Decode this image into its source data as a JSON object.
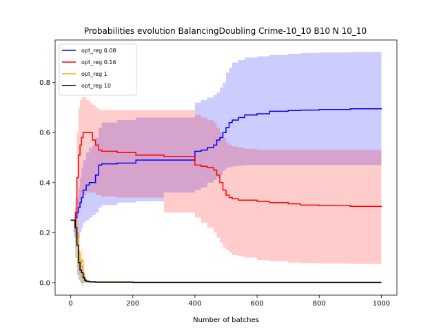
{
  "chart_data": {
    "type": "line",
    "title": "Probabilities evolution BalancingDoubling Crime-10_10 B10 N 10_10",
    "xlabel": "Number of batches",
    "ylabel": "",
    "xlim": [
      -50,
      1050
    ],
    "ylim": [
      -0.05,
      0.97
    ],
    "xticks": [
      0,
      200,
      400,
      600,
      800,
      1000
    ],
    "yticks": [
      0.0,
      0.2,
      0.4,
      0.6,
      0.8
    ],
    "ytick_labels": [
      "0.0",
      "0.2",
      "0.4",
      "0.6",
      "0.8"
    ],
    "grid": false,
    "legend_position": "top-left",
    "series": [
      {
        "name": "opt_reg 0.08",
        "color": "#0000ff",
        "band_color": "#0000ff",
        "x": [
          0,
          10,
          15,
          20,
          25,
          30,
          35,
          40,
          50,
          60,
          70,
          80,
          90,
          100,
          150,
          210,
          300,
          400,
          420,
          440,
          460,
          470,
          480,
          490,
          500,
          510,
          520,
          540,
          560,
          600,
          640,
          700,
          740,
          800,
          900,
          1000
        ],
        "y": [
          0.25,
          0.25,
          0.26,
          0.28,
          0.3,
          0.32,
          0.34,
          0.37,
          0.39,
          0.4,
          0.4,
          0.43,
          0.47,
          0.475,
          0.478,
          0.49,
          0.49,
          0.525,
          0.53,
          0.54,
          0.55,
          0.57,
          0.58,
          0.6,
          0.62,
          0.64,
          0.65,
          0.66,
          0.67,
          0.675,
          0.685,
          0.688,
          0.69,
          0.692,
          0.695,
          0.697
        ],
        "lower": [
          0.25,
          0.25,
          0.2,
          0.18,
          0.17,
          0.18,
          0.2,
          0.22,
          0.24,
          0.25,
          0.26,
          0.27,
          0.28,
          0.3,
          0.31,
          0.32,
          0.325,
          0.36,
          0.37,
          0.38,
          0.4,
          0.41,
          0.42,
          0.43,
          0.45,
          0.46,
          0.462,
          0.465,
          0.468,
          0.47,
          0.47,
          0.47,
          0.47,
          0.47,
          0.47,
          0.47
        ],
        "upper": [
          0.25,
          0.25,
          0.3,
          0.34,
          0.38,
          0.42,
          0.46,
          0.49,
          0.52,
          0.54,
          0.55,
          0.58,
          0.62,
          0.64,
          0.65,
          0.66,
          0.66,
          0.72,
          0.73,
          0.74,
          0.75,
          0.76,
          0.78,
          0.8,
          0.84,
          0.86,
          0.88,
          0.89,
          0.9,
          0.905,
          0.91,
          0.915,
          0.918,
          0.92,
          0.922,
          0.925
        ]
      },
      {
        "name": "opt_reg 0.16",
        "color": "#ff0000",
        "band_color": "#ff0000",
        "x": [
          0,
          10,
          15,
          20,
          25,
          30,
          35,
          40,
          50,
          60,
          70,
          80,
          90,
          100,
          150,
          210,
          300,
          400,
          420,
          440,
          460,
          470,
          480,
          490,
          500,
          510,
          520,
          540,
          560,
          600,
          640,
          700,
          740,
          800,
          900,
          1000
        ],
        "y": [
          0.25,
          0.25,
          0.28,
          0.42,
          0.51,
          0.55,
          0.58,
          0.6,
          0.6,
          0.6,
          0.57,
          0.55,
          0.53,
          0.525,
          0.52,
          0.51,
          0.505,
          0.47,
          0.465,
          0.46,
          0.45,
          0.43,
          0.4,
          0.37,
          0.35,
          0.34,
          0.335,
          0.33,
          0.33,
          0.325,
          0.32,
          0.315,
          0.31,
          0.308,
          0.305,
          0.302
        ],
        "lower": [
          0.25,
          0.25,
          0.22,
          0.23,
          0.26,
          0.3,
          0.32,
          0.34,
          0.35,
          0.36,
          0.36,
          0.36,
          0.35,
          0.35,
          0.345,
          0.34,
          0.34,
          0.28,
          0.26,
          0.24,
          0.22,
          0.2,
          0.18,
          0.16,
          0.14,
          0.13,
          0.12,
          0.11,
          0.105,
          0.1,
          0.09,
          0.085,
          0.08,
          0.078,
          0.076,
          0.075
        ],
        "upper": [
          0.25,
          0.25,
          0.34,
          0.6,
          0.7,
          0.73,
          0.74,
          0.74,
          0.73,
          0.72,
          0.71,
          0.7,
          0.69,
          0.69,
          0.69,
          0.69,
          0.69,
          0.67,
          0.66,
          0.65,
          0.64,
          0.62,
          0.6,
          0.58,
          0.56,
          0.55,
          0.545,
          0.54,
          0.535,
          0.53,
          0.53,
          0.53,
          0.53,
          0.53,
          0.53,
          0.53
        ]
      },
      {
        "name": "opt_reg 1",
        "color": "#ffa500",
        "band_color": "#ffa500",
        "x": [
          0,
          10,
          15,
          20,
          25,
          30,
          35,
          40,
          45,
          50,
          60,
          80,
          100,
          200,
          400,
          600,
          800,
          1000
        ],
        "y": [
          0.25,
          0.25,
          0.24,
          0.2,
          0.12,
          0.08,
          0.09,
          0.03,
          0.01,
          0.005,
          0.003,
          0.002,
          0.002,
          0.001,
          0.001,
          0.001,
          0.001,
          0.001
        ],
        "lower": [
          0.25,
          0.25,
          0.2,
          0.14,
          0.06,
          0.03,
          0.02,
          0.0,
          0.0,
          0.0,
          0.0,
          0.0,
          0.0,
          0.0,
          0.0,
          0.0,
          0.0,
          0.0
        ],
        "upper": [
          0.25,
          0.25,
          0.28,
          0.25,
          0.18,
          0.13,
          0.14,
          0.07,
          0.03,
          0.01,
          0.006,
          0.004,
          0.004,
          0.002,
          0.002,
          0.002,
          0.002,
          0.002
        ]
      },
      {
        "name": "opt_reg 10",
        "color": "#000000",
        "band_color": "#000000",
        "x": [
          0,
          10,
          15,
          20,
          25,
          30,
          35,
          40,
          45,
          50,
          60,
          80,
          100,
          200,
          400,
          600,
          800,
          1000
        ],
        "y": [
          0.25,
          0.25,
          0.22,
          0.15,
          0.08,
          0.05,
          0.04,
          0.02,
          0.01,
          0.005,
          0.003,
          0.002,
          0.002,
          0.001,
          0.001,
          0.001,
          0.001,
          0.001
        ],
        "lower": [
          0.25,
          0.25,
          0.18,
          0.1,
          0.03,
          0.01,
          0.0,
          -0.01,
          0.0,
          0.0,
          0.0,
          0.0,
          0.0,
          0.0,
          0.0,
          0.0,
          0.0,
          0.0
        ],
        "upper": [
          0.25,
          0.25,
          0.26,
          0.2,
          0.13,
          0.09,
          0.07,
          0.04,
          0.02,
          0.01,
          0.006,
          0.004,
          0.004,
          0.002,
          0.002,
          0.002,
          0.002,
          0.002
        ]
      }
    ]
  }
}
